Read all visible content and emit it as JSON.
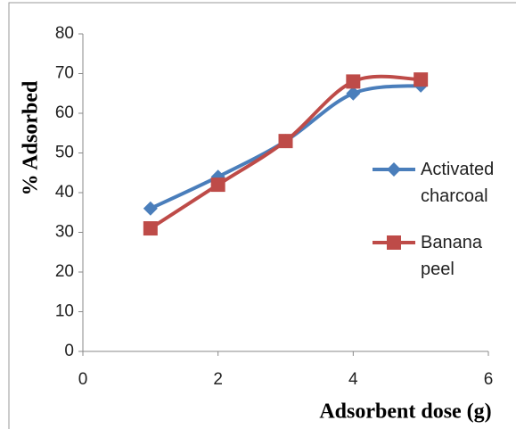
{
  "chart_data": {
    "type": "line",
    "x_label": "Adsorbent dose (g)",
    "y_label": "% Adsorbed",
    "x": [
      1,
      2,
      3,
      4,
      5
    ],
    "series": [
      {
        "name": "Activated charcoal",
        "color": "#4a7ebb",
        "marker": "diamond",
        "values": [
          36,
          44,
          53,
          65,
          67
        ]
      },
      {
        "name": "Banana peel",
        "color": "#be4b48",
        "marker": "square",
        "values": [
          31,
          42,
          53,
          68,
          68.5
        ]
      }
    ],
    "xlim": [
      0,
      6
    ],
    "xticks": [
      0,
      2,
      4,
      6
    ],
    "ylim": [
      0,
      80
    ],
    "yticks": [
      0,
      10,
      20,
      30,
      40,
      50,
      60,
      70,
      80
    ],
    "grid": false,
    "legend": "right"
  }
}
